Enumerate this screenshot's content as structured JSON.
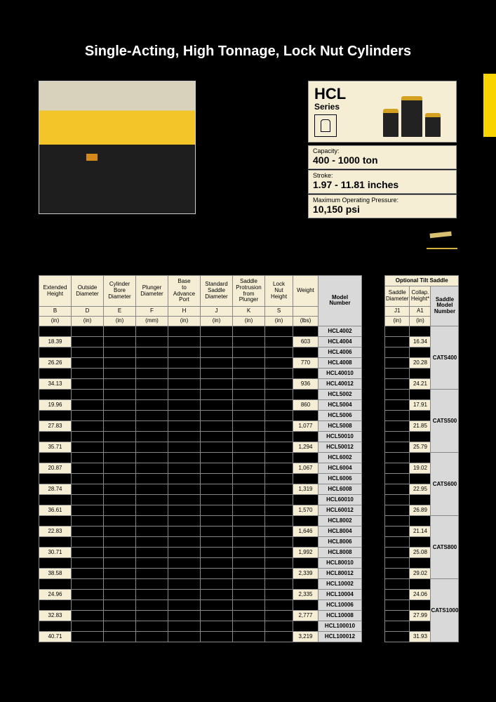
{
  "title": "Single-Acting, High Tonnage, Lock Nut Cylinders",
  "series": {
    "name": "HCL",
    "sub": "Series"
  },
  "specs": [
    {
      "label": "Capacity:",
      "value": "400 - 1000 ton"
    },
    {
      "label": "Stroke:",
      "value": "1.97 - 11.81 inches"
    },
    {
      "label": "Maximum Operating Pressure:",
      "value": "10,150 psi"
    }
  ],
  "mainHeaders": [
    {
      "top": "Extended Height",
      "mid": "B",
      "bot": "(in)"
    },
    {
      "top": "Outside Diameter",
      "mid": "D",
      "bot": "(in)"
    },
    {
      "top": "Cylinder Bore Diameter",
      "mid": "E",
      "bot": "(in)"
    },
    {
      "top": "Plunger Diameter",
      "mid": "F",
      "bot": "(mm)"
    },
    {
      "top": "Base to Advance Port",
      "mid": "H",
      "bot": "(in)"
    },
    {
      "top": "Standard Saddle Diameter",
      "mid": "J",
      "bot": "(in)"
    },
    {
      "top": "Saddle Protrusion from Plunger",
      "mid": "K",
      "bot": "(in)"
    },
    {
      "top": "Lock Nut Height",
      "mid": "S",
      "bot": "(in)"
    },
    {
      "top": "Weight",
      "mid": "",
      "bot": "(lbs)"
    },
    {
      "top": "Model Number",
      "mid": "",
      "bot": ""
    }
  ],
  "tiltTitle": "Optional Tilt Saddle",
  "tiltHeaders": [
    {
      "top": "Saddle Diameter",
      "mid": "J1",
      "bot": "(in)"
    },
    {
      "top": "Collap. Height*",
      "mid": "A1",
      "bot": "(in)"
    },
    {
      "top": "Saddle Model Number",
      "mid": "",
      "bot": ""
    }
  ],
  "rows": [
    {
      "b": "",
      "wt": "",
      "model": "HCL4002",
      "a1": "",
      "tiltModel": "CATS400",
      "tiltSpan": 6
    },
    {
      "b": "18.39",
      "wt": "603",
      "model": "HCL4004",
      "a1": "16.34"
    },
    {
      "b": "",
      "wt": "",
      "model": "HCL4006",
      "a1": ""
    },
    {
      "b": "26.26",
      "wt": "770",
      "model": "HCL4008",
      "a1": "20.28"
    },
    {
      "b": "",
      "wt": "",
      "model": "HCL40010",
      "a1": ""
    },
    {
      "b": "34.13",
      "wt": "936",
      "model": "HCL40012",
      "a1": "24.21"
    },
    {
      "b": "",
      "wt": "",
      "model": "HCL5002",
      "a1": "",
      "tiltModel": "CATS500",
      "tiltSpan": 6
    },
    {
      "b": "19.96",
      "wt": "860",
      "model": "HCL5004",
      "a1": "17.91"
    },
    {
      "b": "",
      "wt": "",
      "model": "HCL5006",
      "a1": ""
    },
    {
      "b": "27.83",
      "wt": "1,077",
      "model": "HCL5008",
      "a1": "21.85"
    },
    {
      "b": "",
      "wt": "",
      "model": "HCL50010",
      "a1": ""
    },
    {
      "b": "35.71",
      "wt": "1,294",
      "model": "HCL50012",
      "a1": "25.79"
    },
    {
      "b": "",
      "wt": "",
      "model": "HCL6002",
      "a1": "",
      "tiltModel": "CATS600",
      "tiltSpan": 6
    },
    {
      "b": "20.87",
      "wt": "1,067",
      "model": "HCL6004",
      "a1": "19.02"
    },
    {
      "b": "",
      "wt": "",
      "model": "HCL6006",
      "a1": ""
    },
    {
      "b": "28.74",
      "wt": "1,319",
      "model": "HCL6008",
      "a1": "22.95"
    },
    {
      "b": "",
      "wt": "",
      "model": "HCL60010",
      "a1": ""
    },
    {
      "b": "36.61",
      "wt": "1,570",
      "model": "HCL60012",
      "a1": "26.89"
    },
    {
      "b": "",
      "wt": "",
      "model": "HCL8002",
      "a1": "",
      "tiltModel": "CATS800",
      "tiltSpan": 6
    },
    {
      "b": "22.83",
      "wt": "1,646",
      "model": "HCL8004",
      "a1": "21.14"
    },
    {
      "b": "",
      "wt": "",
      "model": "HCL8006",
      "a1": ""
    },
    {
      "b": "30.71",
      "wt": "1,992",
      "model": "HCL8008",
      "a1": "25.08"
    },
    {
      "b": "",
      "wt": "",
      "model": "HCL80010",
      "a1": ""
    },
    {
      "b": "38.58",
      "wt": "2,339",
      "model": "HCL80012",
      "a1": "29.02"
    },
    {
      "b": "",
      "wt": "",
      "model": "HCL10002",
      "a1": "",
      "tiltModel": "CATS1000",
      "tiltSpan": 6
    },
    {
      "b": "24.96",
      "wt": "2,335",
      "model": "HCL10004",
      "a1": "24.06"
    },
    {
      "b": "",
      "wt": "",
      "model": "HCL10006",
      "a1": ""
    },
    {
      "b": "32.83",
      "wt": "2,777",
      "model": "HCL10008",
      "a1": "27.99"
    },
    {
      "b": "",
      "wt": "",
      "model": "HCL100010",
      "a1": ""
    },
    {
      "b": "40.71",
      "wt": "3,219",
      "model": "HCL100012",
      "a1": "31.93"
    }
  ],
  "colors": {
    "cream": "#f5eed5",
    "gray": "#d9d9d9",
    "yellow": "#f8d400"
  }
}
